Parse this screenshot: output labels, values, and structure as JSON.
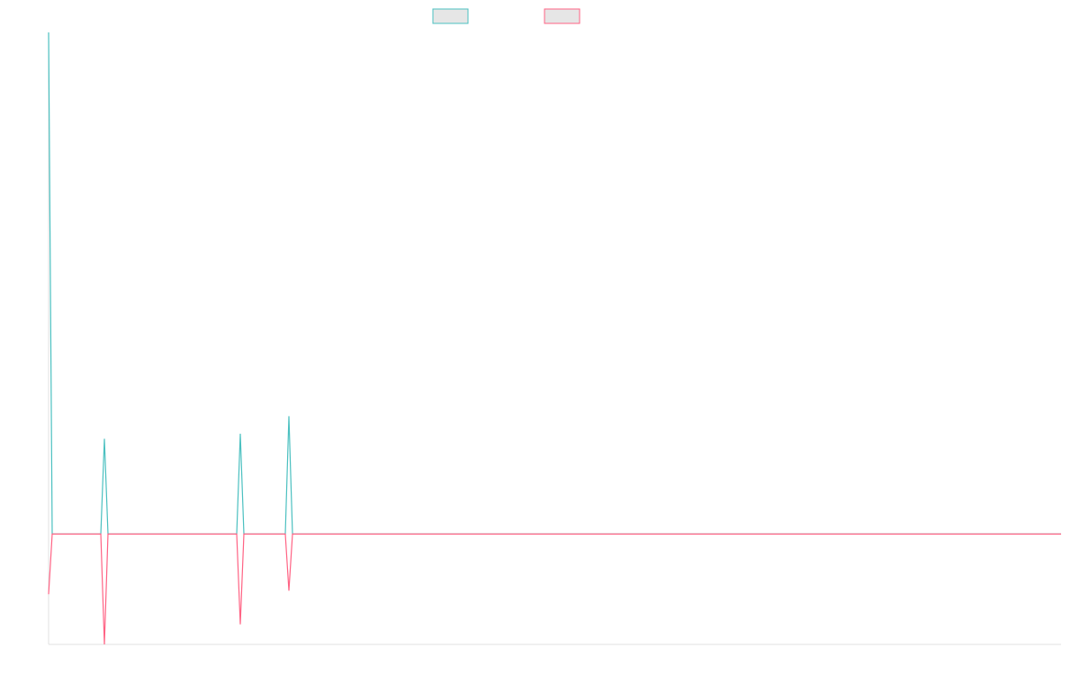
{
  "chart_data": {
    "type": "line",
    "x": [
      0,
      4,
      58,
      62,
      66,
      209,
      213,
      217,
      263,
      267,
      271,
      1125
    ],
    "xlim": [
      0,
      1125
    ],
    "ylim": [
      -22,
      100
    ],
    "series": [
      {
        "color": "#4bc0c0",
        "values": [
          100,
          0,
          0,
          19,
          0,
          0,
          20,
          0,
          0,
          23.5,
          0,
          0
        ]
      },
      {
        "color": "#ff6384",
        "values": [
          -12,
          0,
          0,
          -22,
          0,
          0,
          -18,
          0,
          0,
          -11.3,
          0,
          0
        ]
      }
    ]
  }
}
